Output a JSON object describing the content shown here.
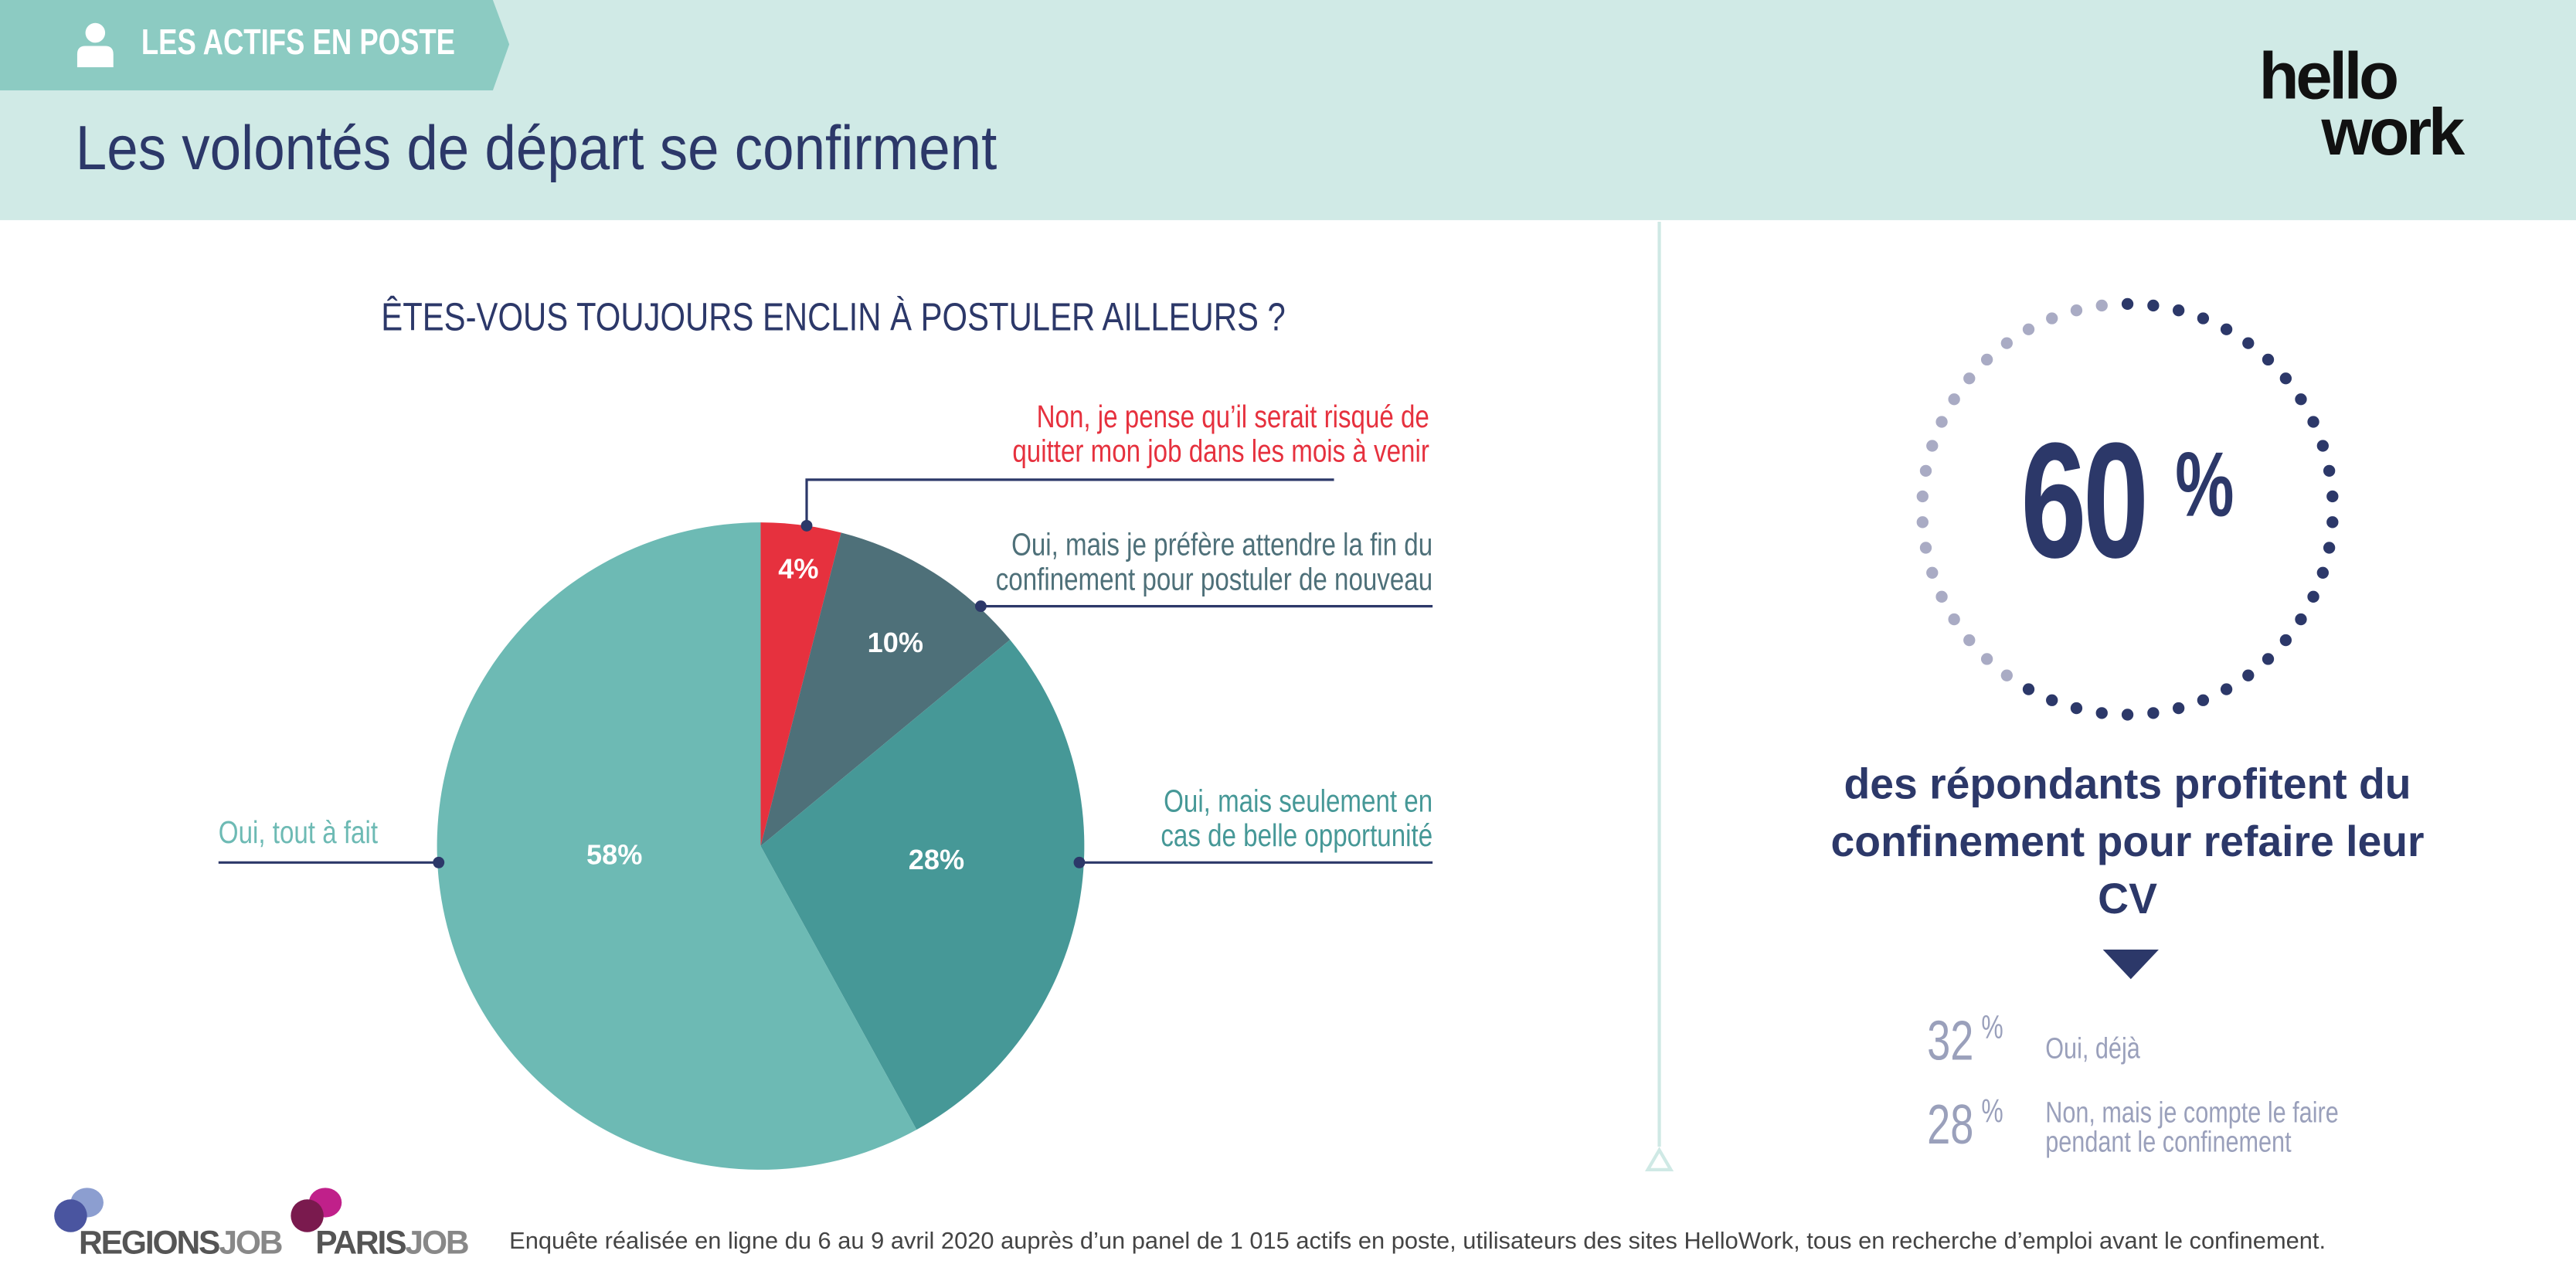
{
  "header": {
    "tag": "LES ACTIFS EN POSTE",
    "tag_icon": "person-icon",
    "title": "Les volontés de départ se confirment",
    "logo_line1": "hello",
    "logo_line2": "work"
  },
  "chart_data": {
    "type": "pie",
    "title": "ÊTES-VOUS TOUJOURS ENCLIN À POSTULER AILLEURS ?",
    "slices": [
      {
        "label": "Non, je pense qu'il serait risqué de quitter mon job dans les mois à venir",
        "label_lines": [
          "Non, je pense qu’il serait risqué de",
          "quitter mon job dans les mois à venir"
        ],
        "value": 4,
        "value_label": "4%",
        "color": "#e6313e"
      },
      {
        "label": "Oui, mais je préfère attendre la fin du confinement pour postuler de nouveau",
        "label_lines": [
          "Oui, mais je préfère attendre la fin du",
          "confinement pour postuler de nouveau"
        ],
        "value": 10,
        "value_label": "10%",
        "color": "#4e7079"
      },
      {
        "label": "Oui, mais seulement en cas de belle opportunité",
        "label_lines": [
          "Oui, mais seulement en",
          "cas de belle opportunité"
        ],
        "value": 28,
        "value_label": "28%",
        "color": "#469897"
      },
      {
        "label": "Oui, tout à fait",
        "label_lines": [
          "Oui, tout à fait"
        ],
        "value": 58,
        "value_label": "58%",
        "color": "#6dbab4"
      }
    ]
  },
  "stat": {
    "value": "60",
    "unit": "%",
    "progress": 60,
    "description": "des répondants profitent du confinement pour refaire leur CV",
    "sub": [
      {
        "value": "32",
        "unit": "%",
        "text_lines": [
          "Oui, déjà"
        ]
      },
      {
        "value": "28",
        "unit": "%",
        "text_lines": [
          "Non, mais je compte le faire",
          "pendant le confinement"
        ]
      }
    ]
  },
  "footer": {
    "brand1a": "REGIONS",
    "brand1b": "JOB",
    "brand2a": "PARIS",
    "brand2b": "JOB",
    "note": "Enquête réalisée en ligne du 6 au 9 avril 2020 auprès d’un panel de 1 015 actifs en poste, utilisateurs des sites HelloWork, tous en recherche d’emploi avant le confinement."
  }
}
